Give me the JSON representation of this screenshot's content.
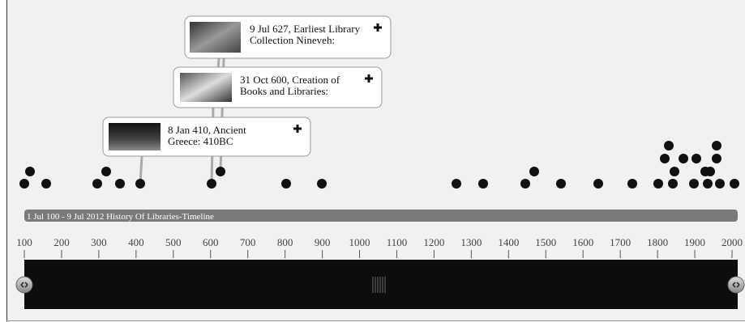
{
  "cards": [
    {
      "lines": [
        "9 Jul 627,  Earliest Library",
        "Collection Nineveh:"
      ]
    },
    {
      "lines": [
        "31 Oct 600, Creation of",
        "Books and Libraries:"
      ]
    },
    {
      "lines": [
        "8 Jan 410, Ancient",
        "Greece: 410BC"
      ]
    }
  ],
  "band_label": "1 Jul 100 - 9 Jul 2012  History Of Libraries-Timeline",
  "axis": {
    "ticks": [
      100,
      200,
      300,
      400,
      500,
      600,
      700,
      800,
      900,
      1000,
      1100,
      1200,
      1300,
      1400,
      1500,
      1600,
      1700,
      1800,
      1900,
      2000
    ]
  }
}
